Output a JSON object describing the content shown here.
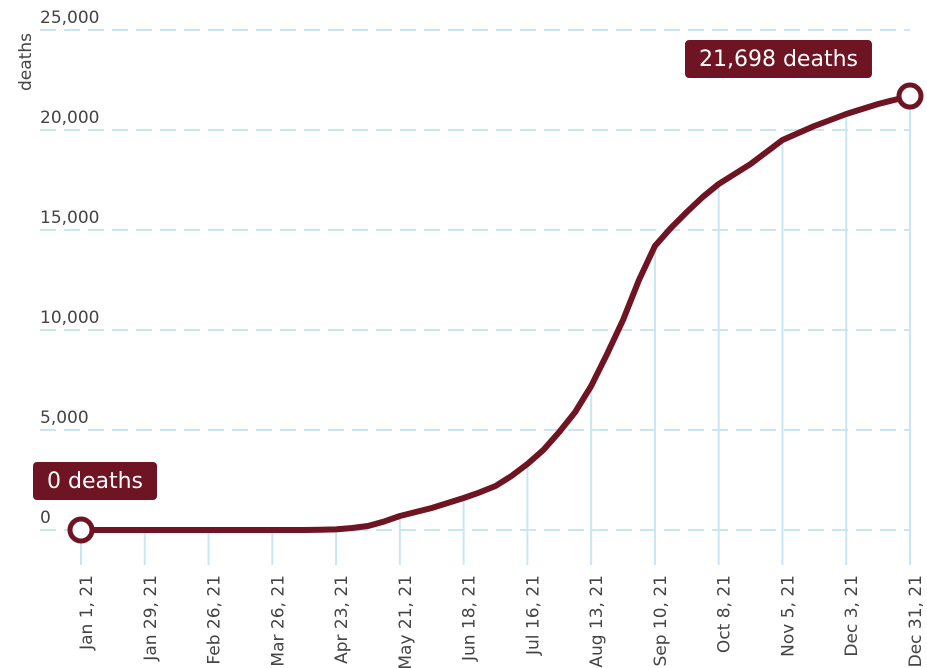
{
  "chart_data": {
    "type": "line",
    "y_label": "deaths",
    "categories": [
      "Jan 1, 21",
      null,
      null,
      null,
      "Jan 29, 21",
      null,
      null,
      null,
      "Feb 26, 21",
      null,
      null,
      null,
      "Mar 26, 21",
      null,
      null,
      null,
      "Apr 23, 21",
      null,
      null,
      null,
      "May 21, 21",
      null,
      null,
      null,
      "Jun 18, 21",
      null,
      null,
      null,
      "Jul 16, 21",
      null,
      null,
      null,
      "Aug 13, 21",
      null,
      null,
      null,
      "Sep 10, 21",
      null,
      null,
      null,
      "Oct 8, 21",
      null,
      null,
      null,
      "Nov 5, 21",
      null,
      null,
      null,
      "Dec 3, 21",
      null,
      null,
      null,
      "Dec 31, 21"
    ],
    "values": [
      0,
      0,
      0,
      0,
      0,
      0,
      0,
      0,
      0,
      0,
      0,
      0,
      0,
      0,
      0,
      10,
      30,
      100,
      200,
      420,
      700,
      900,
      1100,
      1350,
      1600,
      1880,
      2200,
      2700,
      3300,
      4000,
      4900,
      5900,
      7200,
      8800,
      10500,
      12500,
      14200,
      15100,
      15900,
      16650,
      17300,
      17800,
      18300,
      18900,
      19500,
      19850,
      20200,
      20500,
      20800,
      21050,
      21300,
      21500,
      21698
    ],
    "color": "#6e1423",
    "annotations": [
      "0 deaths",
      "21,698 deaths"
    ],
    "ylim": [
      -2000,
      25000
    ],
    "yticks": [
      0,
      {
        "value": 5000,
        "label": "5,000"
      },
      {
        "value": 10000,
        "label": "10,000"
      },
      {
        "value": 15000,
        "label": "15,000"
      },
      {
        "value": 20000,
        "label": "20,000"
      },
      {
        "value": 25000,
        "label": "25,000"
      }
    ],
    "grid": true
  }
}
